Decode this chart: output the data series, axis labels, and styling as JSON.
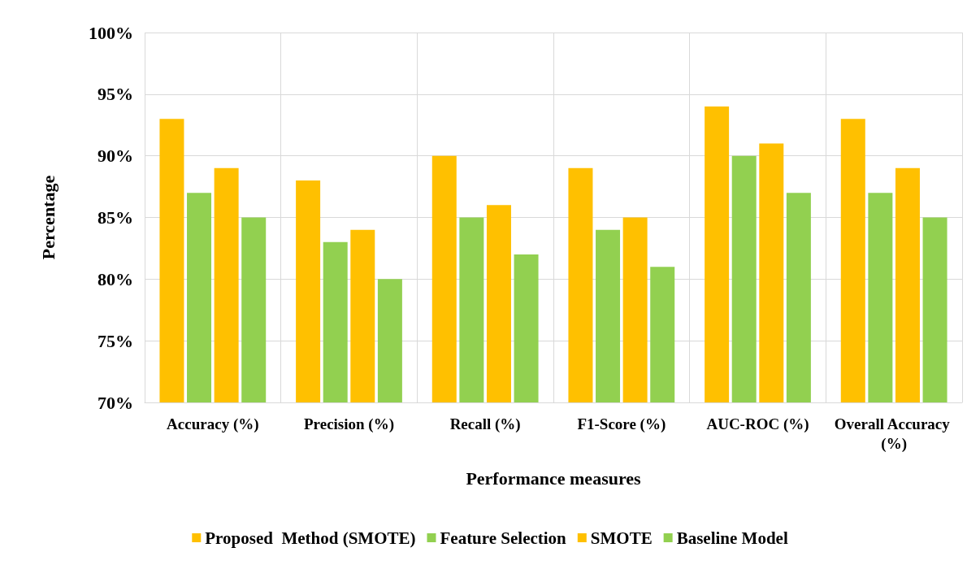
{
  "chart_data": {
    "type": "bar",
    "xlabel": "Performance measures",
    "ylabel": "Percentage",
    "categories": [
      "Accuracy (%)",
      "Precision (%)",
      "Recall (%)",
      "F1-Score (%)",
      "AUC-ROC (%)",
      "Overall Accuracy (%)"
    ],
    "series": [
      {
        "name": "Proposed  Method (SMOTE)",
        "color": "#ffc000",
        "values": [
          93,
          88,
          90,
          89,
          94,
          93
        ]
      },
      {
        "name": "Feature Selection",
        "color": "#92d050",
        "values": [
          87,
          83,
          85,
          84,
          90,
          87
        ]
      },
      {
        "name": "SMOTE",
        "color": "#ffc000",
        "values": [
          89,
          84,
          86,
          85,
          91,
          89
        ]
      },
      {
        "name": "Baseline Model",
        "color": "#92d050",
        "values": [
          85,
          80,
          82,
          81,
          87,
          85
        ]
      }
    ],
    "ylim": [
      70,
      100
    ],
    "yticks": [
      {
        "value": 70,
        "label": "70%"
      },
      {
        "value": 75,
        "label": "75%"
      },
      {
        "value": 80,
        "label": "80%"
      },
      {
        "value": 85,
        "label": "85%"
      },
      {
        "value": 90,
        "label": "90%"
      },
      {
        "value": 95,
        "label": "95%"
      },
      {
        "value": 100,
        "label": "100%"
      }
    ],
    "grid": true,
    "legend": "bottom"
  }
}
